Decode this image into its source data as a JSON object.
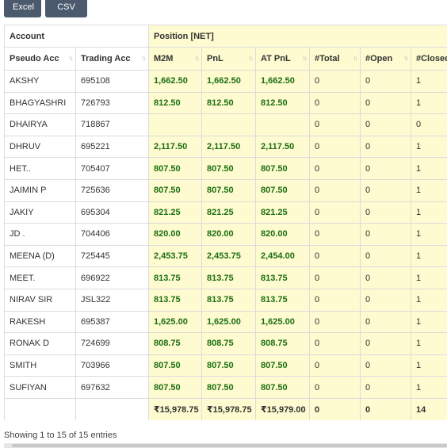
{
  "toolbar": {
    "excel_label": "Excel",
    "csv_label": "CSV"
  },
  "table": {
    "group_headers": {
      "account": "Account",
      "position": "Position [NET]"
    },
    "columns": [
      "Pseudo Acc",
      "Trading Acc",
      "M2M",
      "PnL",
      "AT PnL",
      "#Total",
      "#Open",
      "#Closed"
    ],
    "rows": [
      {
        "pseudo": "AKSHY",
        "trading": "695108",
        "m2m": "1,662.50",
        "pnl": "1,662.50",
        "at_pnl": "1,662.50",
        "total": "0",
        "open": "0",
        "closed": "1"
      },
      {
        "pseudo": "BHAGYASHRI",
        "trading": "726793",
        "m2m": "812.50",
        "pnl": "812.50",
        "at_pnl": "812.50",
        "total": "0",
        "open": "0",
        "closed": "1"
      },
      {
        "pseudo": "DHAIRYA",
        "trading": "718867",
        "m2m": "",
        "pnl": "",
        "at_pnl": "",
        "total": "0",
        "open": "0",
        "closed": "0"
      },
      {
        "pseudo": "DHRUV",
        "trading": "695221",
        "m2m": "2,117.50",
        "pnl": "2,117.50",
        "at_pnl": "2,117.50",
        "total": "0",
        "open": "0",
        "closed": "1"
      },
      {
        "pseudo": "HET..",
        "trading": "705407",
        "m2m": "807.50",
        "pnl": "807.50",
        "at_pnl": "807.50",
        "total": "0",
        "open": "0",
        "closed": "1"
      },
      {
        "pseudo": "JAIMIN P",
        "trading": "725636",
        "m2m": "807.50",
        "pnl": "807.50",
        "at_pnl": "807.50",
        "total": "0",
        "open": "0",
        "closed": "1"
      },
      {
        "pseudo": "JAKIY",
        "trading": "695304",
        "m2m": "821.25",
        "pnl": "821.25",
        "at_pnl": "821.25",
        "total": "0",
        "open": "0",
        "closed": "1"
      },
      {
        "pseudo": "JD .",
        "trading": "704406",
        "m2m": "820.00",
        "pnl": "820.00",
        "at_pnl": "820.00",
        "total": "0",
        "open": "0",
        "closed": "1"
      },
      {
        "pseudo": "MEENA (D)",
        "trading": "725445",
        "m2m": "2,453.75",
        "pnl": "2,453.75",
        "at_pnl": "2,454.00",
        "total": "0",
        "open": "0",
        "closed": "1"
      },
      {
        "pseudo": "MEET.",
        "trading": "696922",
        "m2m": "813.75",
        "pnl": "813.75",
        "at_pnl": "813.75",
        "total": "0",
        "open": "0",
        "closed": "1"
      },
      {
        "pseudo": "NIRAV SIR",
        "trading": "JSL322",
        "m2m": "813.75",
        "pnl": "813.75",
        "at_pnl": "813.75",
        "total": "0",
        "open": "0",
        "closed": "1"
      },
      {
        "pseudo": "RAKESH",
        "trading": "695387",
        "m2m": "1,625.00",
        "pnl": "1,625.00",
        "at_pnl": "1,625.00",
        "total": "0",
        "open": "0",
        "closed": "1"
      },
      {
        "pseudo": "RONAK D",
        "trading": "724699",
        "m2m": "808.75",
        "pnl": "808.75",
        "at_pnl": "808.75",
        "total": "0",
        "open": "0",
        "closed": "1"
      },
      {
        "pseudo": "SMITH",
        "trading": "703966",
        "m2m": "807.50",
        "pnl": "807.50",
        "at_pnl": "807.50",
        "total": "0",
        "open": "0",
        "closed": "1"
      },
      {
        "pseudo": "SUFIYAN",
        "trading": "697632",
        "m2m": "807.50",
        "pnl": "807.50",
        "at_pnl": "807.50",
        "total": "0",
        "open": "0",
        "closed": "1"
      }
    ],
    "totals": {
      "m2m": "₹15,978.75",
      "pnl": "₹15,978.75",
      "at_pnl": "₹15,979.00",
      "total": "0",
      "open": "0",
      "closed": "14"
    }
  },
  "footer": {
    "info": "Showing 1 to 15 of 15 entries"
  },
  "colors": {
    "button_bg": "#4b5a6d",
    "highlight_bg": "#fdfbcf",
    "positive_text": "#1d6f12"
  },
  "icons": {
    "sort": "sort-icon"
  }
}
